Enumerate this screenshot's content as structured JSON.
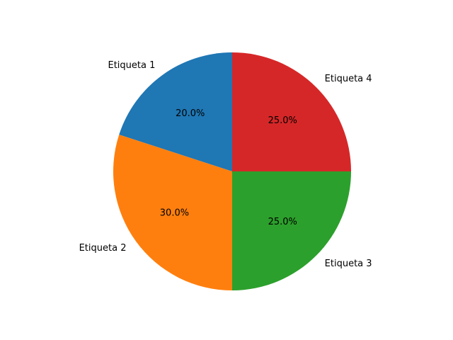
{
  "chart_data": {
    "type": "pie",
    "title": "",
    "slices": [
      {
        "label": "Etiqueta 1",
        "value": 20,
        "pct_text": "20.0%",
        "color": "#1f77b4"
      },
      {
        "label": "Etiqueta 2",
        "value": 30,
        "pct_text": "30.0%",
        "color": "#ff7f0e"
      },
      {
        "label": "Etiqueta 3",
        "value": 25,
        "pct_text": "25.0%",
        "color": "#2ca02c"
      },
      {
        "label": "Etiqueta 4",
        "value": 25,
        "pct_text": "25.0%",
        "color": "#d62728"
      }
    ],
    "start_angle_deg": 90,
    "direction": "counterclockwise",
    "legend": "none"
  }
}
